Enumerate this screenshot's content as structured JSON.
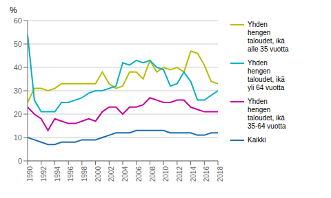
{
  "chart_data": {
    "type": "line",
    "ylabel": "%",
    "x": [
      1990,
      1991,
      1992,
      1993,
      1994,
      1995,
      1996,
      1997,
      1998,
      1999,
      2000,
      2001,
      2002,
      2003,
      2004,
      2005,
      2006,
      2007,
      2008,
      2009,
      2010,
      2011,
      2012,
      2013,
      2014,
      2015,
      2016,
      2017,
      2018
    ],
    "series": [
      {
        "name": "Yhden\nhengen\ntaloudet, ikä\nalle 35 vuotta",
        "color": "#b5bd00",
        "values": [
          25,
          31,
          31,
          30,
          31,
          33,
          33,
          33,
          33,
          33,
          33,
          38,
          33,
          31,
          32,
          38,
          38,
          35,
          43,
          38,
          40,
          39,
          40,
          38,
          47,
          46,
          41,
          34,
          33
        ]
      },
      {
        "name": "Yhden\nhengen\ntaloudet, ikä\nyli 64 vuotta",
        "color": "#00b0c8",
        "values": [
          54,
          26,
          21,
          21,
          21,
          25,
          25,
          26,
          27,
          29,
          30,
          30,
          31,
          32,
          42,
          41,
          43,
          42,
          43,
          40,
          39,
          32,
          33,
          38,
          34,
          26,
          26,
          28,
          30
        ]
      },
      {
        "name": "Yhden\nhengen\ntaloudet, ikä\n35-64 vuotta",
        "color": "#c800a0",
        "values": [
          23,
          20,
          18,
          13,
          18,
          17,
          16,
          16,
          17,
          18,
          17,
          21,
          23,
          23,
          20,
          23,
          23,
          24,
          27,
          26,
          25,
          25,
          26,
          26,
          23,
          22,
          21,
          21,
          21
        ]
      },
      {
        "name": "Kaikki",
        "color": "#1f6cb0",
        "values": [
          10,
          9,
          8,
          7,
          7,
          8,
          8,
          8,
          9,
          9,
          9,
          10,
          11,
          12,
          12,
          12,
          13,
          13,
          13,
          13,
          13,
          12,
          12,
          12,
          12,
          11,
          11,
          12,
          12
        ]
      }
    ],
    "xlim": [
      1990,
      2018
    ],
    "xticks": [
      1990,
      1992,
      1994,
      1996,
      1998,
      2000,
      2002,
      2004,
      2006,
      2008,
      2010,
      2012,
      2014,
      2016,
      2018
    ],
    "ylim": [
      0,
      60
    ],
    "yticks": [
      0,
      10,
      20,
      30,
      40,
      50,
      60
    ],
    "grid": true,
    "legend": "right"
  }
}
